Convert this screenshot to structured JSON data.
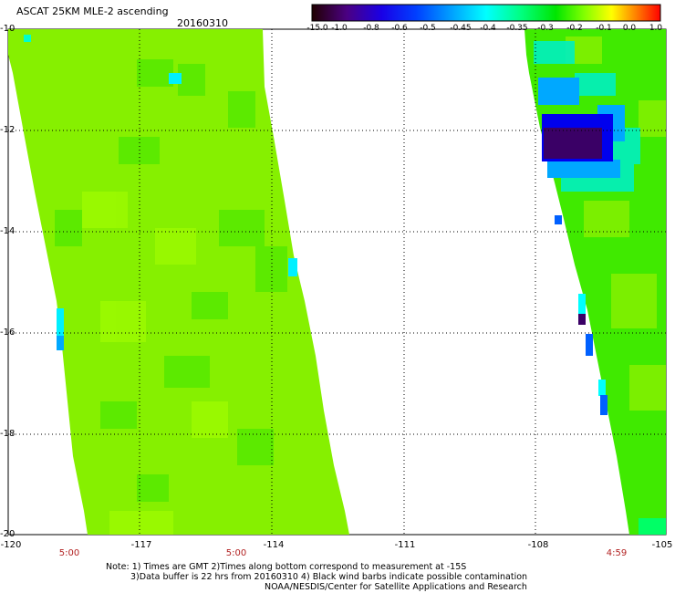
{
  "header": {
    "title": "ASCAT 25KM MLE-2 ascending",
    "date": "20160310"
  },
  "colorbar": {
    "labels": [
      "-15.0",
      "-1.0",
      "-0.8",
      "-0.6",
      "-0.5",
      "-0.45",
      "-0.4",
      "-0.35",
      "-0.3",
      "-0.2",
      "-0.1",
      "0.0",
      "1.0"
    ],
    "colors": [
      "#3a0066",
      "#6a00aa",
      "#2a00cc",
      "#0000ff",
      "#0066ff",
      "#00aaff",
      "#00ffff",
      "#00ff88",
      "#00ee00",
      "#88ff00",
      "#ffff00",
      "#ff8800",
      "#ff0000"
    ]
  },
  "map": {
    "lat_ticks": [
      "-10",
      "-12",
      "-14",
      "-16",
      "-18",
      "-20"
    ],
    "lon_ticks": [
      "-120",
      "-117",
      "-114",
      "-111",
      "-108",
      "-105"
    ],
    "time_labels": [
      "5:00",
      "5:00",
      "4:59"
    ],
    "swath_color": "#88ff00",
    "low_value_color": "#2a0066"
  },
  "notes": [
    "Note: 1) Times are GMT 2)Times along bottom correspond to measurement at -15S",
    "3)Data buffer is 22 hrs from 20160310 4) Black wind barbs indicate possible contamination",
    "NOAA/NESDIS/Center for Satellite Applications and Research"
  ]
}
